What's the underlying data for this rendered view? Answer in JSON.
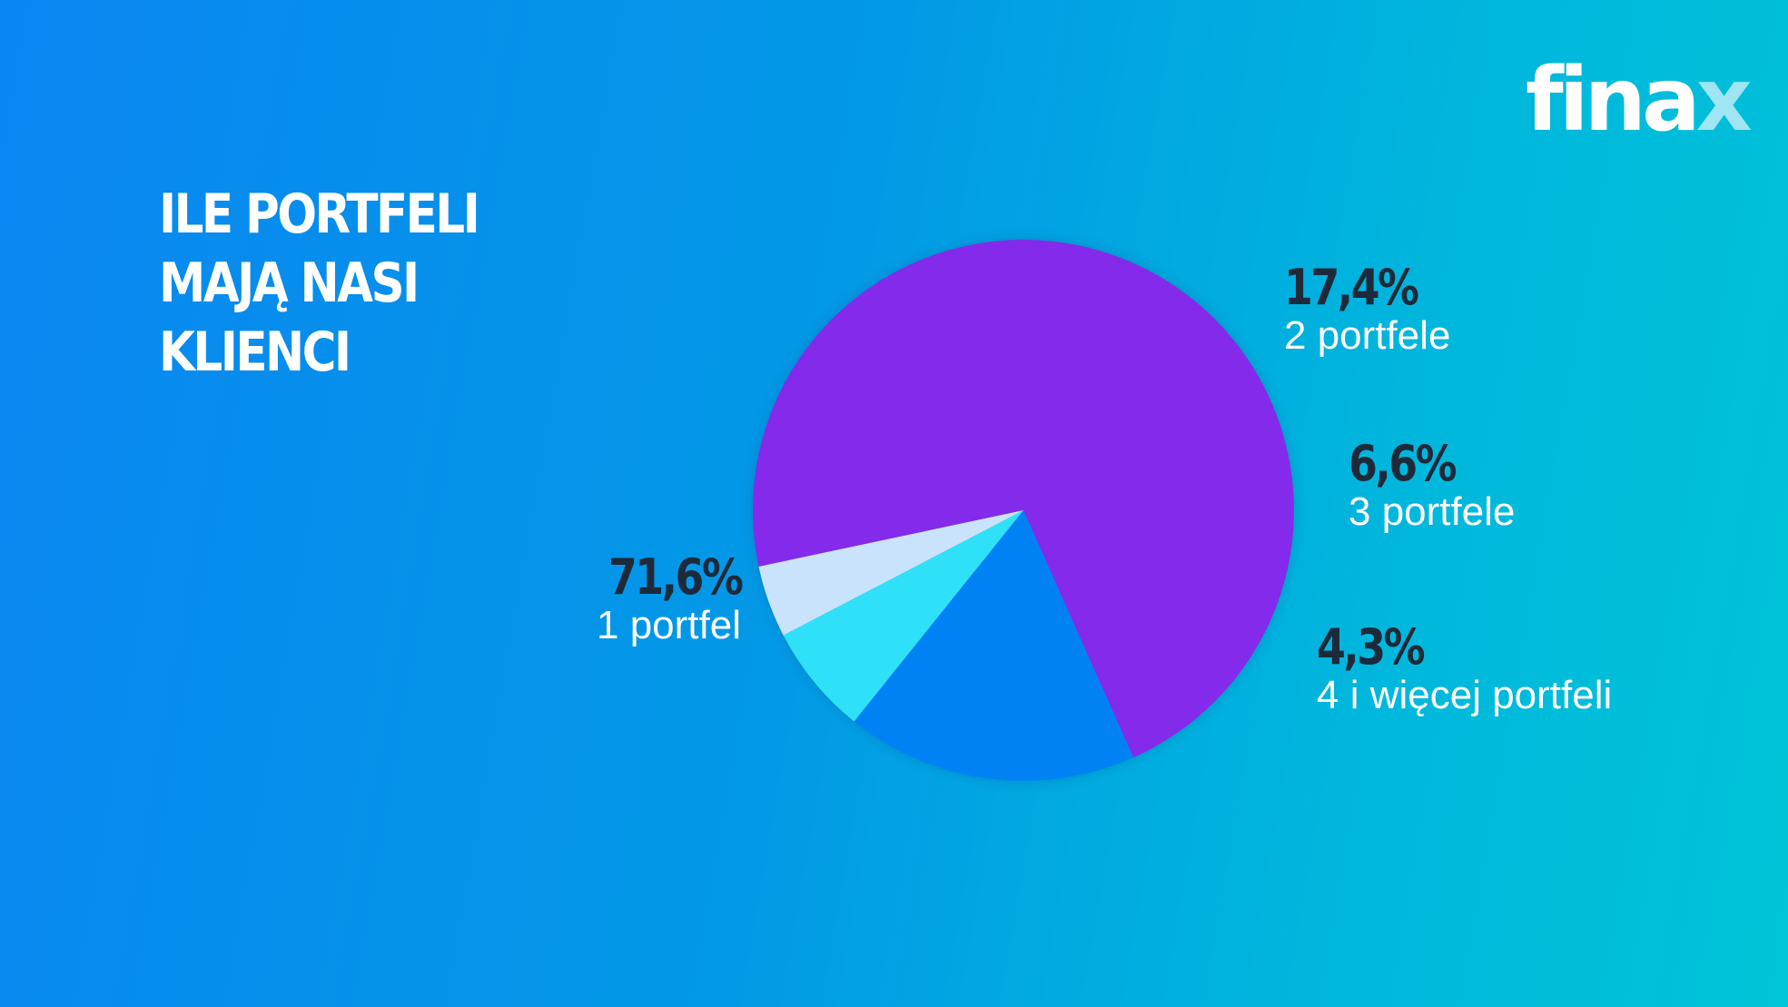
{
  "logo": {
    "text_main": "fina",
    "text_accent": "x"
  },
  "colors": {
    "slice_1": "#8429ea",
    "slice_2": "#0182f5",
    "slice_3": "#2fe1f8",
    "slice_4": "#c9e3fd",
    "label_percent": "#1d2a3a",
    "label_name": "#ffffff"
  },
  "chart_data": {
    "type": "pie",
    "title_lines": [
      "ILE PORTFELI",
      "MAJĄ NASI",
      "KLIENCI"
    ],
    "slices": [
      {
        "label": "1 portfel",
        "value": 71.6,
        "value_label": "71,6%",
        "color": "#8429ea"
      },
      {
        "label": "2 portfele",
        "value": 17.4,
        "value_label": "17,4%",
        "color": "#0182f5"
      },
      {
        "label": "3 portfele",
        "value": 6.6,
        "value_label": "6,6%",
        "color": "#2fe1f8"
      },
      {
        "label": "4 i więcej portfeli",
        "value": 4.3,
        "value_label": "4,3%",
        "color": "#c9e3fd"
      }
    ]
  }
}
